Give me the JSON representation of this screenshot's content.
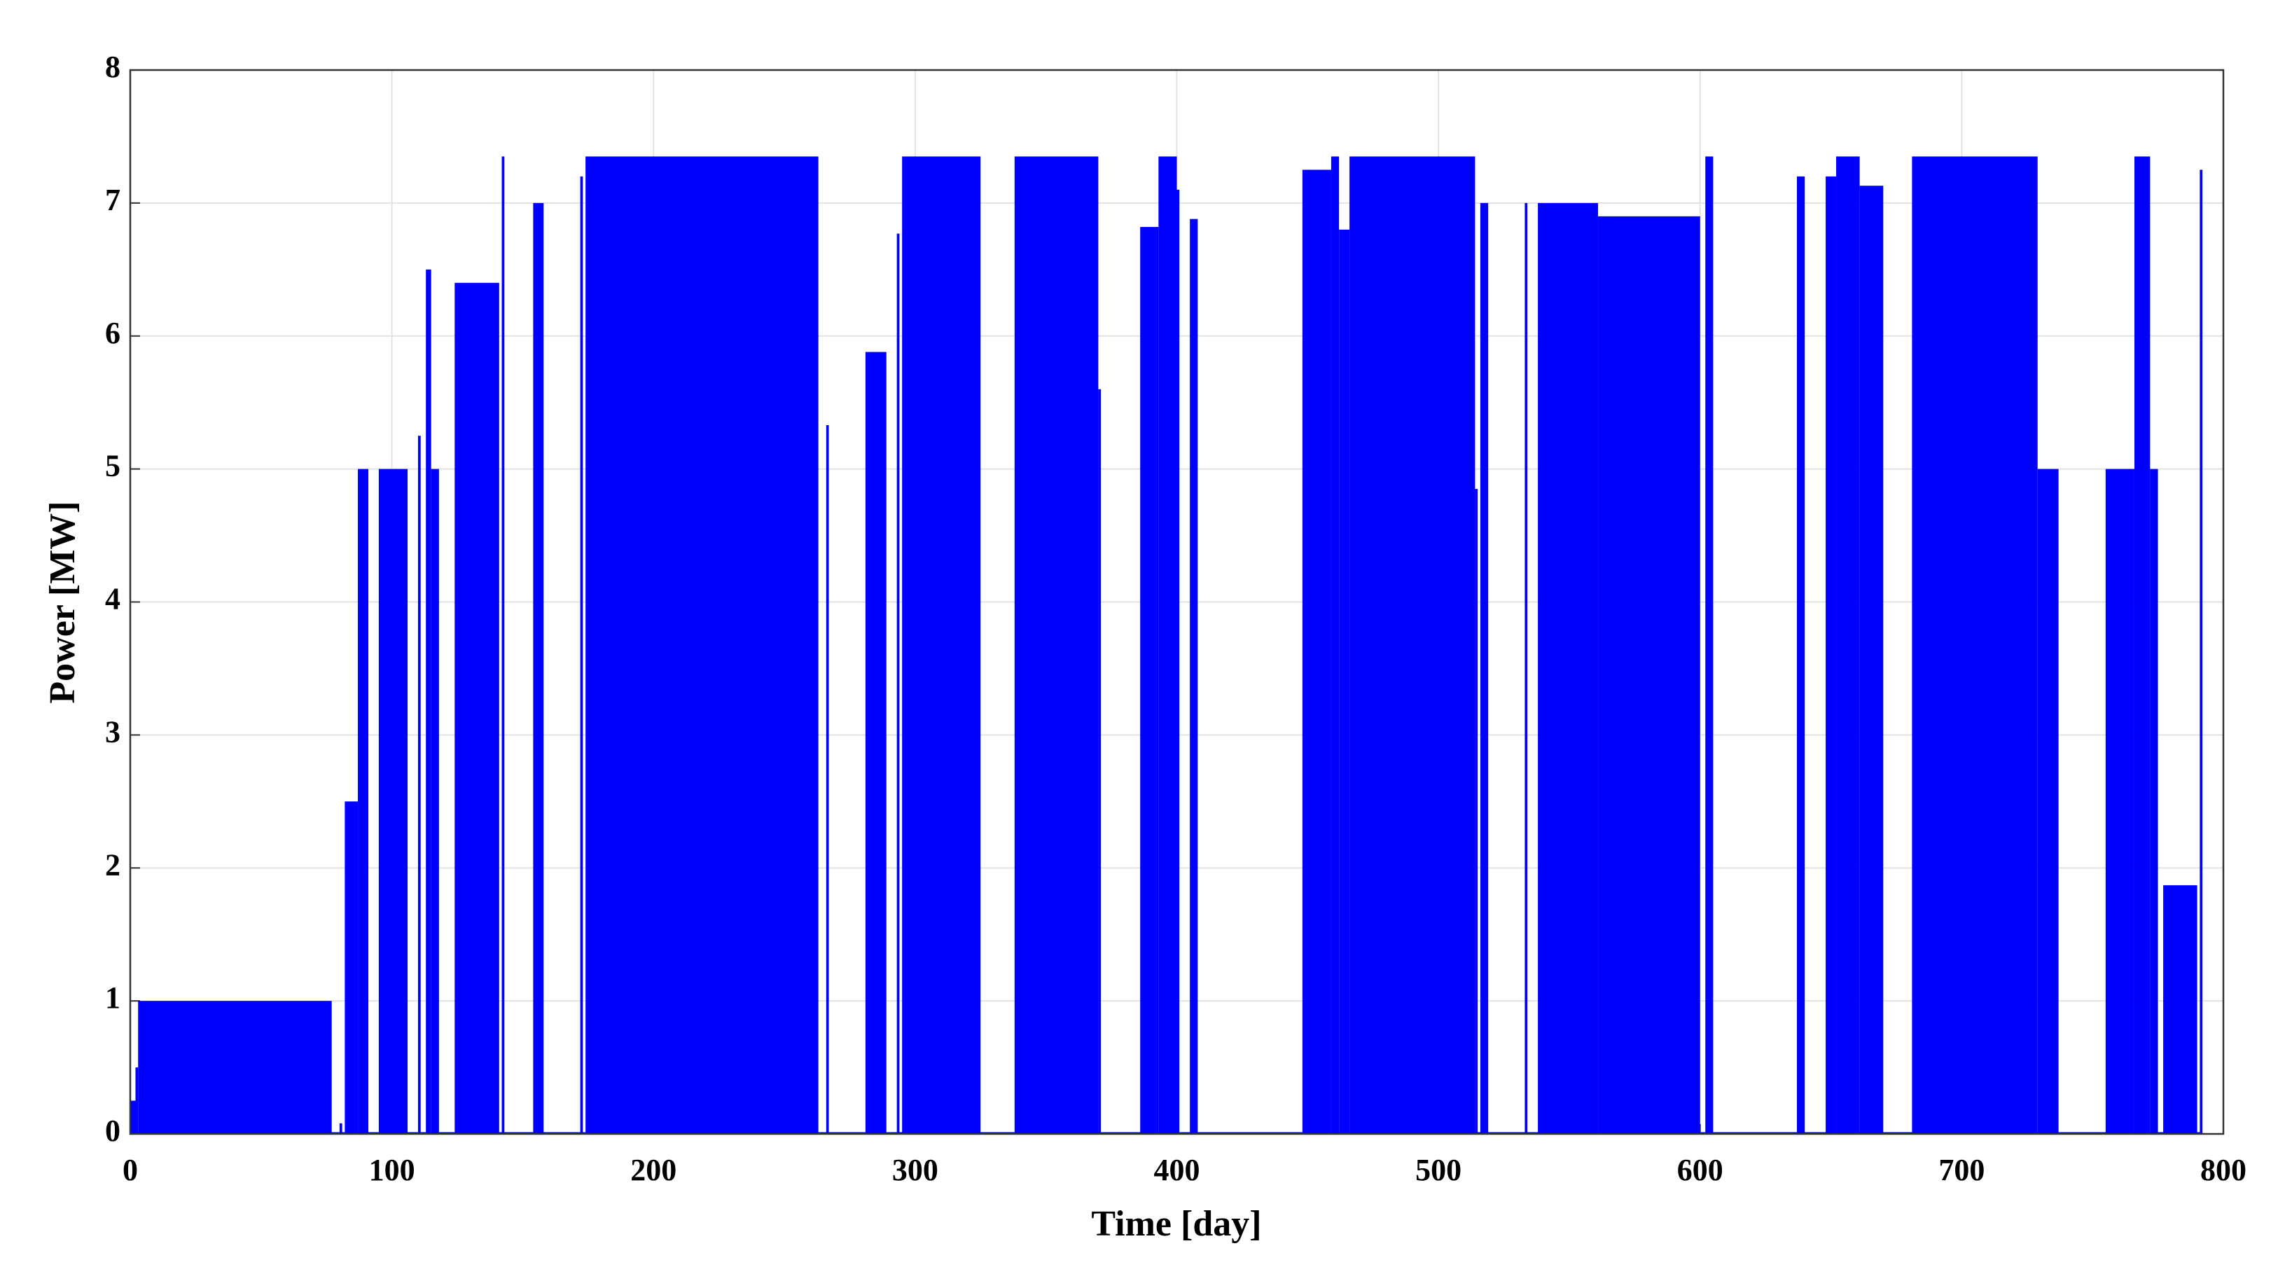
{
  "chart_data": {
    "type": "step",
    "x_label": "Time [day]",
    "y_label": "Power [MW]",
    "color": "#0000ff",
    "grid": true,
    "xlim": [
      0,
      800
    ],
    "xticks": [
      0,
      100,
      200,
      300,
      400,
      500,
      600,
      700,
      800
    ],
    "ylim": [
      0,
      8
    ],
    "yticks": [
      0,
      1,
      2,
      3,
      4,
      5,
      6,
      7,
      8
    ],
    "x": [
      0,
      2,
      3,
      77,
      80,
      81,
      82,
      87,
      91,
      95,
      106,
      110,
      111,
      113,
      115,
      118,
      124,
      141,
      142,
      143,
      154,
      158,
      172,
      173,
      174,
      263,
      266,
      267,
      281,
      289,
      293,
      294,
      295,
      325,
      338,
      370,
      371,
      386,
      393,
      400,
      401,
      405,
      408,
      448,
      459,
      462,
      466,
      514,
      515,
      516,
      519,
      533,
      534,
      538,
      561,
      600,
      602,
      605,
      637,
      640,
      648,
      652,
      661,
      670,
      681,
      729,
      737,
      755,
      766,
      772,
      775,
      777,
      790,
      791,
      792
    ],
    "values": [
      0.25,
      0.5,
      1,
      0,
      0.08,
      0,
      2.5,
      5,
      0,
      5,
      0,
      5.25,
      0,
      6.5,
      5,
      0,
      6.4,
      0,
      7.35,
      0,
      7,
      0,
      7.2,
      0,
      7.35,
      0,
      5.33,
      0,
      5.88,
      0,
      6.77,
      0,
      7.35,
      0,
      7.35,
      5.6,
      0,
      6.82,
      7.35,
      7.1,
      0,
      6.88,
      0,
      7.25,
      7.35,
      6.8,
      7.35,
      4.85,
      0,
      7,
      0,
      7,
      0,
      7,
      6.9,
      0,
      7.35,
      0,
      7.2,
      0,
      7.2,
      7.35,
      7.13,
      0,
      7.35,
      5,
      0,
      5,
      7.35,
      5,
      0,
      1.87,
      0,
      7.25,
      0
    ]
  }
}
